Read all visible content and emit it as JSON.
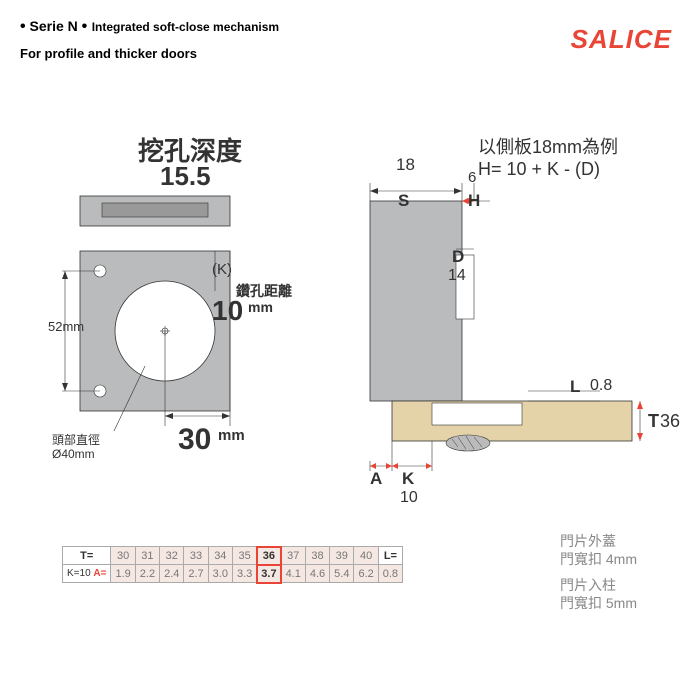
{
  "header": {
    "series": "Serie N",
    "sub": "Integrated soft-close mechanism",
    "brand": "SALICE",
    "subtitle": "For profile and thicker doors"
  },
  "left": {
    "depth_label": "挖孔深度",
    "depth_value": "15.5",
    "height_mm": "52mm",
    "head_diam": "頭部直徑\nØ40mm",
    "k_label": "(K)",
    "drill_dist_label": "鑽孔距離",
    "drill_dist_value": "10",
    "drill_dist_unit": "mm",
    "bottom_value": "30",
    "bottom_unit": "mm"
  },
  "right": {
    "example": "以側板18mm為例",
    "formula": "H= 10 + K - (D)",
    "S_val": "18",
    "S": "S",
    "H_val": "6",
    "H": "H",
    "D": "D",
    "D_val": "14",
    "L": "L",
    "L_val": "0.8",
    "T": "T",
    "T_val": "36",
    "A": "A",
    "K": "K",
    "K_val": "10"
  },
  "table": {
    "T_label": "T=",
    "K_label": "K=10",
    "A_label": "A=",
    "L_label": "L=",
    "T_row": [
      "30",
      "31",
      "32",
      "33",
      "34",
      "35",
      "36",
      "37",
      "38",
      "39",
      "40"
    ],
    "A_row": [
      "1.9",
      "2.2",
      "2.4",
      "2.7",
      "3.0",
      "3.3",
      "3.7",
      "4.1",
      "4.6",
      "5.4",
      "6.2"
    ],
    "L_val": "0.8",
    "highlight_col": 6
  },
  "notes": {
    "n1a": "門片外蓋",
    "n1b": "門寬扣 4mm",
    "n2a": "門片入柱",
    "n2b": "門寬扣 5mm"
  },
  "colors": {
    "red": "#e84537",
    "gray": "#b9bbbc",
    "tan": "#e4d2a9"
  }
}
